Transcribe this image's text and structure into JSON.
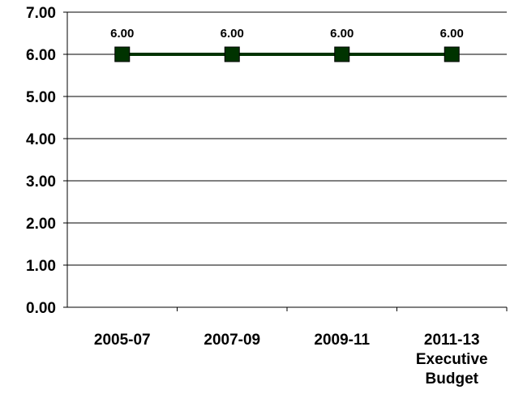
{
  "chart_data": {
    "type": "line",
    "categories": [
      [
        "2005-07"
      ],
      [
        "2007-09"
      ],
      [
        "2009-11"
      ],
      [
        "2011-13",
        "Executive",
        "Budget"
      ]
    ],
    "series": [
      {
        "values": [
          6.0,
          6.0,
          6.0,
          6.0
        ],
        "data_labels": [
          "6.00",
          "6.00",
          "6.00",
          "6.00"
        ],
        "color": "#003300",
        "marker": "square"
      }
    ],
    "ylim": [
      0,
      7
    ],
    "yticks": [
      0,
      1,
      2,
      3,
      4,
      5,
      6,
      7
    ],
    "ytick_labels": [
      "0.00",
      "1.00",
      "2.00",
      "3.00",
      "4.00",
      "5.00",
      "6.00",
      "7.00"
    ],
    "grid": true,
    "legend": "none"
  }
}
